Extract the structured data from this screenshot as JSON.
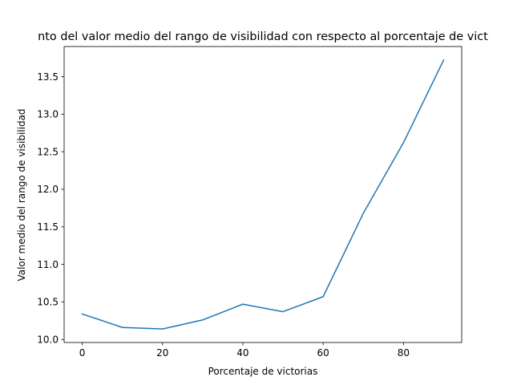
{
  "chart_data": {
    "type": "line",
    "title": "nto del valor medio del rango de visibilidad con respecto al porcentaje de vict",
    "xlabel": "Porcentaje de victorias",
    "ylabel": "Valor medio del rango de visibilidad",
    "x": [
      0,
      10,
      20,
      30,
      40,
      50,
      60,
      70,
      80,
      90
    ],
    "series": [
      {
        "values": [
          10.34,
          10.16,
          10.14,
          10.26,
          10.47,
          10.37,
          10.57,
          11.68,
          12.62,
          13.72
        ],
        "color": "#1f77b4"
      }
    ],
    "xlim": [
      -4.5,
      94.5
    ],
    "ylim": [
      9.96,
      13.9
    ],
    "xticks": [
      0,
      20,
      40,
      60,
      80
    ],
    "xtick_labels": [
      "0",
      "20",
      "40",
      "60",
      "80"
    ],
    "yticks": [
      10.0,
      10.5,
      11.0,
      11.5,
      12.0,
      12.5,
      13.0,
      13.5
    ],
    "ytick_labels": [
      "10.0",
      "10.5",
      "11.0",
      "11.5",
      "12.0",
      "12.5",
      "13.0",
      "13.5"
    ],
    "grid": false,
    "legend": false
  }
}
